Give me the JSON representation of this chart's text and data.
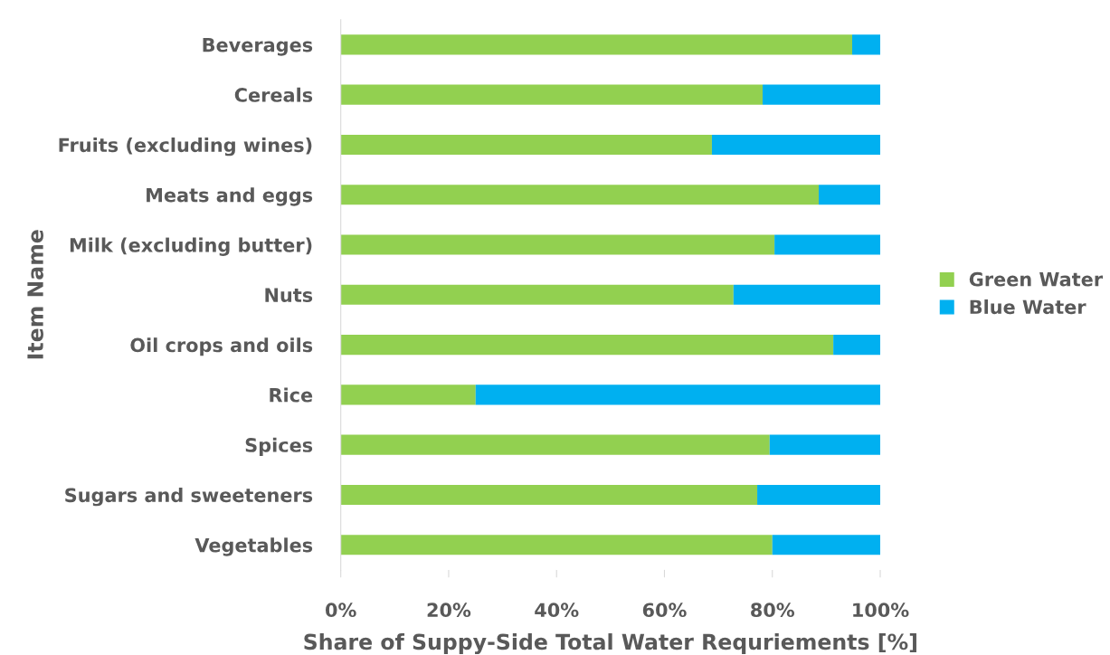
{
  "chart_data": {
    "type": "bar",
    "orientation": "horizontal",
    "stacked": true,
    "categories": [
      "Beverages",
      "Cereals",
      "Fruits (excluding wines)",
      "Meats and eggs",
      "Milk (excluding butter)",
      "Nuts",
      "Oil crops and oils",
      "Rice",
      "Spices",
      "Sugars and sweeteners",
      "Vegetables"
    ],
    "series": [
      {
        "name": "Green Water",
        "color": "#92d050",
        "values": [
          94.8,
          78.2,
          68.8,
          88.6,
          80.4,
          72.8,
          91.3,
          25.0,
          79.5,
          77.2,
          80.0
        ]
      },
      {
        "name": "Blue Water",
        "color": "#00b0f0",
        "values": [
          5.2,
          21.8,
          31.2,
          11.4,
          19.6,
          27.2,
          8.7,
          75.0,
          20.5,
          22.8,
          20.0
        ]
      }
    ],
    "xlabel": "Share of Suppy-Side Total Water Requriements [%]",
    "ylabel": "Item Name",
    "xlim": [
      0,
      100
    ],
    "xticks": [
      {
        "value": 0,
        "label": "0%"
      },
      {
        "value": 20,
        "label": "20%"
      },
      {
        "value": 40,
        "label": "40%"
      },
      {
        "value": 60,
        "label": "60%"
      },
      {
        "value": 80,
        "label": "80%"
      },
      {
        "value": 100,
        "label": "100%"
      }
    ],
    "grid": false,
    "legend": "right"
  }
}
